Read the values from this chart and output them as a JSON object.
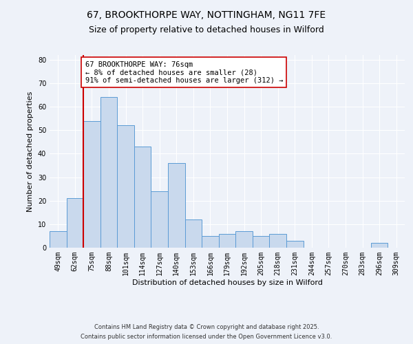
{
  "title_line1": "67, BROOKTHORPE WAY, NOTTINGHAM, NG11 7FE",
  "title_line2": "Size of property relative to detached houses in Wilford",
  "xlabel": "Distribution of detached houses by size in Wilford",
  "ylabel": "Number of detached properties",
  "bar_labels": [
    "49sqm",
    "62sqm",
    "75sqm",
    "88sqm",
    "101sqm",
    "114sqm",
    "127sqm",
    "140sqm",
    "153sqm",
    "166sqm",
    "179sqm",
    "192sqm",
    "205sqm",
    "218sqm",
    "231sqm",
    "244sqm",
    "257sqm",
    "270sqm",
    "283sqm",
    "296sqm",
    "309sqm"
  ],
  "bar_values": [
    7,
    21,
    54,
    64,
    52,
    43,
    24,
    36,
    12,
    5,
    6,
    7,
    5,
    6,
    3,
    0,
    0,
    0,
    0,
    2,
    0
  ],
  "bar_color": "#c9d9ed",
  "bar_edge_color": "#5b9bd5",
  "vline_index": 2,
  "vline_color": "#cc0000",
  "ylim": [
    0,
    82
  ],
  "yticks": [
    0,
    10,
    20,
    30,
    40,
    50,
    60,
    70,
    80
  ],
  "annotation_text": "67 BROOKTHORPE WAY: 76sqm\n← 8% of detached houses are smaller (28)\n91% of semi-detached houses are larger (312) →",
  "annotation_box_color": "#ffffff",
  "annotation_box_edge": "#cc0000",
  "footnote1": "Contains HM Land Registry data © Crown copyright and database right 2025.",
  "footnote2": "Contains public sector information licensed under the Open Government Licence v3.0.",
  "background_color": "#eef2f9",
  "grid_color": "#ffffff",
  "title_fontsize": 10,
  "subtitle_fontsize": 9,
  "axis_label_fontsize": 8,
  "tick_fontsize": 7,
  "annotation_fontsize": 7.5,
  "footnote_fontsize": 6
}
